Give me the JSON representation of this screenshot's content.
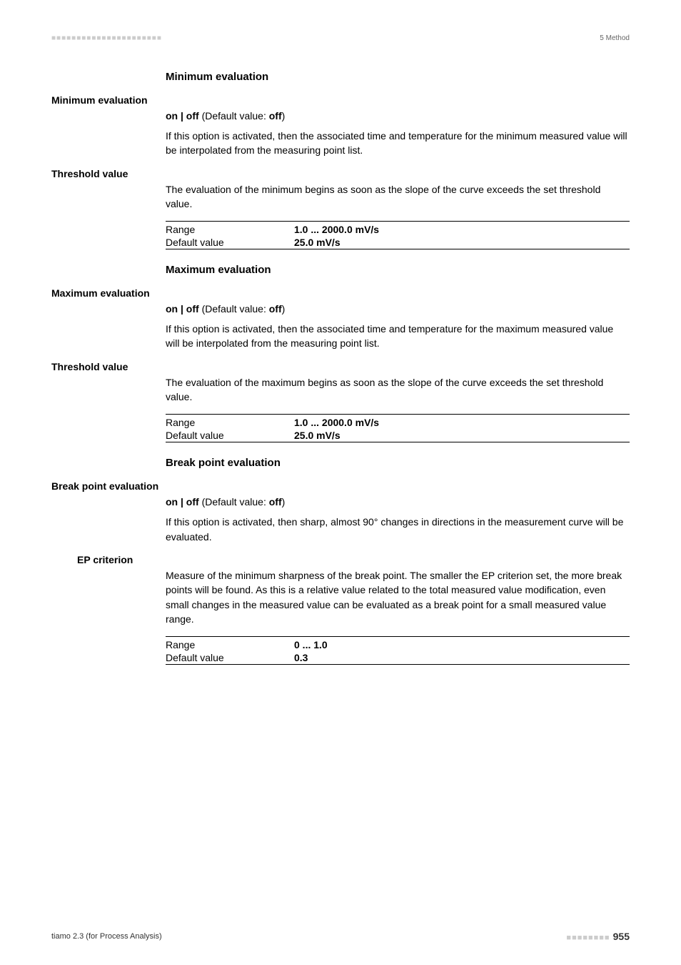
{
  "header": {
    "left_marks": "■■■■■■■■■■■■■■■■■■■■■■",
    "right": "5 Method"
  },
  "sections": {
    "minimum": {
      "heading": "Minimum evaluation",
      "param_label": "Minimum evaluation",
      "default_line_prefix": "on | off",
      "default_line_mid": " (Default value: ",
      "default_line_val": "off",
      "default_line_suffix": ")",
      "desc": "If this option is activated, then the associated time and temperature for the minimum measured value will be interpolated from the measuring point list.",
      "threshold_label": "Threshold value",
      "threshold_desc": "The evaluation of the minimum begins as soon as the slope of the curve exceeds the set threshold value.",
      "range_key": "Range",
      "range_val": "1.0 ... 2000.0 mV/s",
      "default_key": "Default value",
      "default_val": "25.0 mV/s"
    },
    "maximum": {
      "heading": "Maximum evaluation",
      "param_label": "Maximum evaluation",
      "default_line_prefix": "on | off",
      "default_line_mid": " (Default value: ",
      "default_line_val": "off",
      "default_line_suffix": ")",
      "desc": "If this option is activated, then the associated time and temperature for the maximum measured value will be interpolated from the measuring point list.",
      "threshold_label": "Threshold value",
      "threshold_desc": "The evaluation of the maximum begins as soon as the slope of the curve exceeds the set threshold value.",
      "range_key": "Range",
      "range_val": "1.0 ... 2000.0 mV/s",
      "default_key": "Default value",
      "default_val": "25.0 mV/s"
    },
    "breakpoint": {
      "heading": "Break point evaluation",
      "param_label": "Break point evaluation",
      "default_line_prefix": "on | off",
      "default_line_mid": " (Default value: ",
      "default_line_val": "off",
      "default_line_suffix": ")",
      "desc": "If this option is activated, then sharp, almost 90° changes in directions in the measurement curve will be evaluated.",
      "ep_label": "EP criterion",
      "ep_desc": "Measure of the minimum sharpness of the break point. The smaller the EP criterion set, the more break points will be found. As this is a relative value related to the total measured value modification, even small changes in the measured value can be evaluated as a break point for a small measured value range.",
      "range_key": "Range",
      "range_val": "0 ... 1.0",
      "default_key": "Default value",
      "default_val": "0.3"
    }
  },
  "footer": {
    "left": "tiamo 2.3 (for Process Analysis)",
    "dots": "■■■■■■■■ ",
    "page": "955"
  }
}
